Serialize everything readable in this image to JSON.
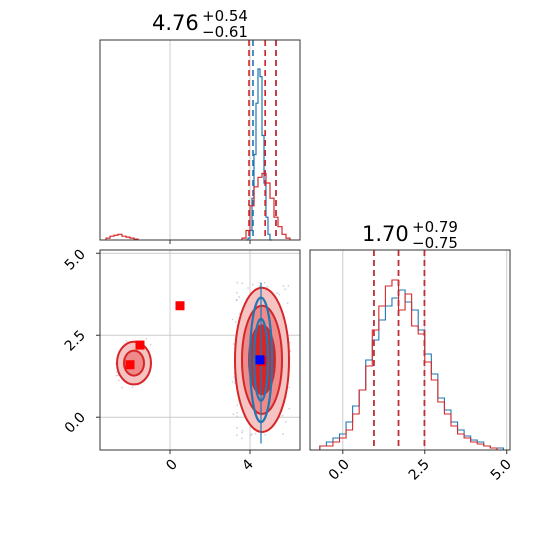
{
  "chart_data": [
    {
      "type": "histogram",
      "panel": "param-1-marginal",
      "title_value": "4.76",
      "title_plus": "+0.54",
      "title_minus": "−0.61",
      "xlim": [
        -3.5,
        6.5
      ],
      "grid": true,
      "series": [
        {
          "name": "",
          "color": "#1f77b4",
          "bins_x": [
            3.85,
            3.95,
            4.05,
            4.15,
            4.25,
            4.35,
            4.45,
            4.55,
            4.65,
            4.75,
            4.85,
            4.95,
            5.05
          ],
          "heights": [
            0,
            0.01,
            0.05,
            0.22,
            0.45,
            0.72,
            0.9,
            0.86,
            0.55,
            0.3,
            0.12,
            0.03,
            0
          ],
          "quantile_lines": [
            4.15,
            4.76,
            5.3
          ]
        },
        {
          "name": "",
          "color": "#d62728",
          "bins_x": [
            -3.1,
            -2.9,
            -2.7,
            -2.5,
            -2.3,
            -2.1,
            -1.9,
            -1.7,
            3.7,
            3.9,
            4.1,
            4.3,
            4.5,
            4.7,
            4.9,
            5.1,
            5.3,
            5.5,
            5.7,
            5.9
          ],
          "heights": [
            0.01,
            0.02,
            0.025,
            0.03,
            0.02,
            0.015,
            0.01,
            0.005,
            0.01,
            0.05,
            0.18,
            0.28,
            0.33,
            0.35,
            0.3,
            0.22,
            0.12,
            0.07,
            0.03,
            0.01
          ],
          "quantile_lines": [
            3.95,
            4.76,
            5.3
          ]
        }
      ]
    },
    {
      "type": "scatter",
      "panel": "joint-2d-contour",
      "xlim": [
        -3.5,
        6.5
      ],
      "ylim": [
        -1.0,
        5.1
      ],
      "xticks": [
        "0",
        "4"
      ],
      "yticks": [
        "0.0",
        "2.5",
        "5.0"
      ],
      "red_markers": [
        {
          "x": -2.0,
          "y": 1.6
        },
        {
          "x": -1.5,
          "y": 2.2
        },
        {
          "x": 0.5,
          "y": 3.4
        },
        {
          "x": 4.6,
          "y": 1.7
        }
      ],
      "blue_markers": [
        {
          "x": 4.5,
          "y": 1.75
        }
      ],
      "red_contours": [
        {
          "cx": 4.6,
          "cy": 1.75,
          "rx": 1.35,
          "ry": 2.2
        },
        {
          "cx": 4.6,
          "cy": 1.75,
          "rx": 1.0,
          "ry": 1.65
        },
        {
          "cx": 4.6,
          "cy": 1.75,
          "rx": 0.65,
          "ry": 1.05
        },
        {
          "cx": -1.8,
          "cy": 1.65,
          "rx": 0.85,
          "ry": 0.65
        },
        {
          "cx": -1.8,
          "cy": 1.65,
          "rx": 0.5,
          "ry": 0.38
        }
      ],
      "blue_contours": [
        {
          "cx": 4.55,
          "cy": 1.75,
          "rx": 0.55,
          "ry": 1.9
        },
        {
          "cx": 4.55,
          "cy": 1.75,
          "rx": 0.35,
          "ry": 1.25
        }
      ]
    },
    {
      "type": "histogram",
      "panel": "param-2-marginal",
      "title_value": "1.70",
      "title_plus": "+0.79",
      "title_minus": "−0.75",
      "xlim": [
        -1.0,
        5.1
      ],
      "xticks": [
        "0.0",
        "2.5",
        "5.0"
      ],
      "grid": true,
      "series": [
        {
          "name": "",
          "color": "#1f77b4",
          "bins_x": [
            -0.8,
            -0.6,
            -0.4,
            -0.2,
            0.0,
            0.2,
            0.4,
            0.6,
            0.8,
            1.0,
            1.2,
            1.4,
            1.6,
            1.8,
            2.0,
            2.2,
            2.4,
            2.6,
            2.8,
            3.0,
            3.2,
            3.4,
            3.6,
            3.8,
            4.0,
            4.2,
            4.4,
            4.6,
            4.8
          ],
          "heights": [
            0.0,
            0.02,
            0.04,
            0.06,
            0.08,
            0.14,
            0.22,
            0.3,
            0.45,
            0.55,
            0.65,
            0.72,
            0.76,
            0.8,
            0.74,
            0.7,
            0.6,
            0.48,
            0.38,
            0.26,
            0.2,
            0.14,
            0.1,
            0.07,
            0.05,
            0.04,
            0.02,
            0.01,
            0.01
          ],
          "quantile_lines": [
            0.95,
            1.7,
            2.49
          ]
        },
        {
          "name": "",
          "color": "#d62728",
          "bins_x": [
            -0.8,
            -0.6,
            -0.4,
            -0.2,
            0.0,
            0.2,
            0.4,
            0.6,
            0.8,
            1.0,
            1.2,
            1.4,
            1.6,
            1.8,
            2.0,
            2.2,
            2.4,
            2.6,
            2.8,
            3.0,
            3.2,
            3.4,
            3.6,
            3.8,
            4.0,
            4.2,
            4.4,
            4.6,
            4.8
          ],
          "heights": [
            0.0,
            0.02,
            0.02,
            0.04,
            0.06,
            0.1,
            0.18,
            0.3,
            0.42,
            0.6,
            0.72,
            0.82,
            0.85,
            0.7,
            0.78,
            0.62,
            0.58,
            0.44,
            0.35,
            0.24,
            0.18,
            0.12,
            0.08,
            0.06,
            0.04,
            0.03,
            0.02,
            0.01,
            0.0
          ],
          "quantile_lines": [
            0.95,
            1.7,
            2.49
          ]
        }
      ]
    }
  ],
  "colors": {
    "blue": "#1f77b4",
    "red": "#d62728",
    "red_fill": "#f4a6a6",
    "marker_red": "#ff0000",
    "marker_blue": "#0000ff",
    "grid": "#cccccc"
  }
}
